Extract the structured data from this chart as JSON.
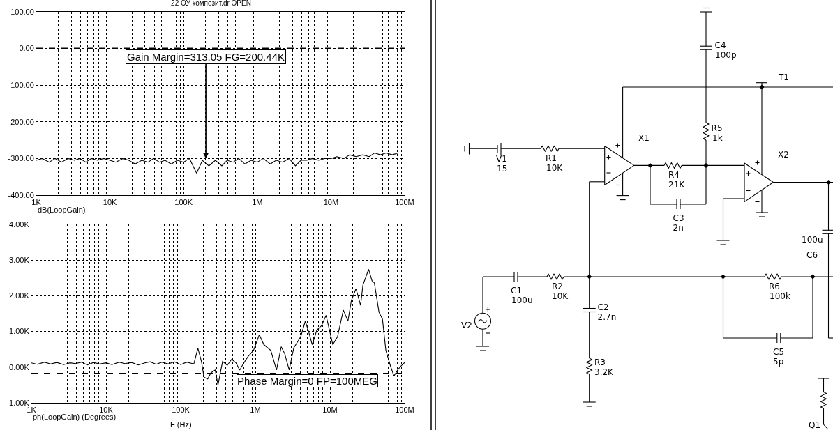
{
  "chart_data": [
    {
      "type": "line",
      "title": "22 ОУ композит.dr OPEN",
      "color": "#000000",
      "log": "x",
      "grid": true,
      "x": [
        1000,
        1200,
        1500,
        1800,
        2200,
        2700,
        3300,
        3900,
        4700,
        5600,
        6800,
        8200,
        10000,
        12000,
        15000,
        18000,
        22000,
        27000,
        33000,
        39000,
        47000,
        56000,
        68000,
        82000,
        100000,
        120000,
        150000,
        180000,
        220000,
        270000,
        330000,
        390000,
        470000,
        560000,
        680000,
        820000,
        1000000,
        1200000,
        1500000,
        1800000,
        2200000,
        2700000,
        3300000,
        3900000,
        4700000,
        5600000,
        6800000,
        8200000,
        10000000,
        12000000,
        15000000,
        18000000,
        22000000,
        27000000,
        33000000,
        39000000,
        47000000,
        56000000,
        68000000,
        82000000,
        100000000
      ],
      "values": [
        -305,
        -300,
        -310,
        -300,
        -310,
        -300,
        -305,
        -300,
        -310,
        -300,
        -305,
        -300,
        -305,
        -310,
        -300,
        -305,
        -315,
        -305,
        -310,
        -300,
        -310,
        -305,
        -315,
        -305,
        -310,
        -300,
        -340,
        -305,
        -320,
        -305,
        -320,
        -305,
        -310,
        -300,
        -315,
        -305,
        -310,
        -300,
        -315,
        -305,
        -310,
        -300,
        -320,
        -305,
        -305,
        -300,
        -305,
        -300,
        -300,
        -295,
        -300,
        -290,
        -295,
        -290,
        -295,
        -285,
        -290,
        -285,
        -290,
        -285,
        -285
      ],
      "xlim": [
        1000,
        100000000
      ],
      "ylim": [
        -400,
        100
      ],
      "xticks": [
        {
          "value": 1000,
          "label": "1K"
        },
        {
          "value": 2000,
          "label": null
        },
        {
          "value": 3000,
          "label": null
        },
        {
          "value": 4000,
          "label": null
        },
        {
          "value": 5000,
          "label": null
        },
        {
          "value": 6000,
          "label": null
        },
        {
          "value": 7000,
          "label": null
        },
        {
          "value": 8000,
          "label": null
        },
        {
          "value": 9000,
          "label": null
        },
        {
          "value": 10000,
          "label": "10K"
        },
        {
          "value": 20000,
          "label": null
        },
        {
          "value": 30000,
          "label": null
        },
        {
          "value": 40000,
          "label": null
        },
        {
          "value": 50000,
          "label": null
        },
        {
          "value": 60000,
          "label": null
        },
        {
          "value": 70000,
          "label": null
        },
        {
          "value": 80000,
          "label": null
        },
        {
          "value": 90000,
          "label": null
        },
        {
          "value": 100000,
          "label": "100K"
        },
        {
          "value": 200000,
          "label": null
        },
        {
          "value": 300000,
          "label": null
        },
        {
          "value": 400000,
          "label": null
        },
        {
          "value": 500000,
          "label": null
        },
        {
          "value": 600000,
          "label": null
        },
        {
          "value": 700000,
          "label": null
        },
        {
          "value": 800000,
          "label": null
        },
        {
          "value": 900000,
          "label": null
        },
        {
          "value": 1000000,
          "label": "1M"
        },
        {
          "value": 2000000,
          "label": null
        },
        {
          "value": 3000000,
          "label": null
        },
        {
          "value": 4000000,
          "label": null
        },
        {
          "value": 5000000,
          "label": null
        },
        {
          "value": 6000000,
          "label": null
        },
        {
          "value": 7000000,
          "label": null
        },
        {
          "value": 8000000,
          "label": null
        },
        {
          "value": 9000000,
          "label": null
        },
        {
          "value": 10000000,
          "label": "10M"
        },
        {
          "value": 20000000,
          "label": null
        },
        {
          "value": 30000000,
          "label": null
        },
        {
          "value": 40000000,
          "label": null
        },
        {
          "value": 50000000,
          "label": null
        },
        {
          "value": 60000000,
          "label": null
        },
        {
          "value": 70000000,
          "label": null
        },
        {
          "value": 80000000,
          "label": null
        },
        {
          "value": 90000000,
          "label": null
        },
        {
          "value": 100000000,
          "label": "100M"
        }
      ],
      "yticks": [
        {
          "value": 100,
          "label": "100.00"
        },
        {
          "value": 0,
          "label": "0.00"
        },
        {
          "value": -100,
          "label": "-100.00"
        },
        {
          "value": -200,
          "label": "-200.00"
        },
        {
          "value": -300,
          "label": "-300.00"
        },
        {
          "value": -400,
          "label": "-400.00"
        }
      ],
      "ref_lines": [
        {
          "axis": "y",
          "value": 0,
          "line_style": "dashed"
        }
      ],
      "annotations": [
        {
          "text": "Gain Margin=313.05 FG=200.44K",
          "x": 200440,
          "y": -300
        },
        "dB(LoopGain)"
      ]
    },
    {
      "type": "line",
      "xlabel": "F (Hz)",
      "color": "#000000",
      "log": "x",
      "grid": true,
      "x": [
        1000,
        1200,
        1500,
        1800,
        2200,
        2700,
        3300,
        3900,
        4700,
        5600,
        6800,
        8200,
        10000,
        12000,
        15000,
        18000,
        22000,
        27000,
        33000,
        39000,
        47000,
        56000,
        68000,
        82000,
        100000,
        120000,
        150000,
        170000,
        190000,
        205000,
        230000,
        254000,
        290000,
        316000,
        364000,
        420000,
        482000,
        550000,
        618000,
        687000,
        800000,
        946000,
        1130000,
        1300000,
        1610000,
        1920000,
        2220000,
        2470000,
        2840000,
        3270000,
        4050000,
        4670000,
        5200000,
        5780000,
        6660000,
        7690000,
        8860000,
        9840000,
        10900000,
        12600000,
        15100000,
        17400000,
        19300000,
        22300000,
        25700000,
        27600000,
        32900000,
        36600000,
        39300000,
        45300000,
        50400000,
        56000000,
        64600000,
        71900000,
        80000000,
        88900000,
        100000000
      ],
      "values": [
        120,
        80,
        140,
        90,
        130,
        70,
        120,
        100,
        140,
        60,
        130,
        90,
        120,
        70,
        140,
        100,
        130,
        60,
        120,
        150,
        80,
        140,
        90,
        150,
        70,
        140,
        90,
        530,
        150,
        -280,
        -330,
        -160,
        -80,
        -500,
        160,
        50,
        220,
        120,
        -80,
        90,
        300,
        470,
        910,
        630,
        470,
        -80,
        570,
        380,
        -80,
        540,
        850,
        1290,
        980,
        630,
        1040,
        1160,
        1450,
        1040,
        630,
        850,
        1600,
        1290,
        1860,
        2200,
        1730,
        2300,
        2740,
        2420,
        2360,
        1540,
        1350,
        470,
        30,
        -250,
        -90,
        30,
        130
      ],
      "xlim": [
        1000,
        100000000
      ],
      "ylim": [
        -1000,
        4000
      ],
      "xticks": [
        {
          "value": 1000,
          "label": "1K"
        },
        {
          "value": 2000,
          "label": null
        },
        {
          "value": 3000,
          "label": null
        },
        {
          "value": 4000,
          "label": null
        },
        {
          "value": 5000,
          "label": null
        },
        {
          "value": 6000,
          "label": null
        },
        {
          "value": 7000,
          "label": null
        },
        {
          "value": 8000,
          "label": null
        },
        {
          "value": 9000,
          "label": null
        },
        {
          "value": 10000,
          "label": "10K"
        },
        {
          "value": 20000,
          "label": null
        },
        {
          "value": 30000,
          "label": null
        },
        {
          "value": 40000,
          "label": null
        },
        {
          "value": 50000,
          "label": null
        },
        {
          "value": 60000,
          "label": null
        },
        {
          "value": 70000,
          "label": null
        },
        {
          "value": 80000,
          "label": null
        },
        {
          "value": 90000,
          "label": null
        },
        {
          "value": 100000,
          "label": "100K"
        },
        {
          "value": 200000,
          "label": null
        },
        {
          "value": 300000,
          "label": null
        },
        {
          "value": 400000,
          "label": null
        },
        {
          "value": 500000,
          "label": null
        },
        {
          "value": 600000,
          "label": null
        },
        {
          "value": 700000,
          "label": null
        },
        {
          "value": 800000,
          "label": null
        },
        {
          "value": 900000,
          "label": null
        },
        {
          "value": 1000000,
          "label": "1M"
        },
        {
          "value": 2000000,
          "label": null
        },
        {
          "value": 3000000,
          "label": null
        },
        {
          "value": 4000000,
          "label": null
        },
        {
          "value": 5000000,
          "label": null
        },
        {
          "value": 6000000,
          "label": null
        },
        {
          "value": 7000000,
          "label": null
        },
        {
          "value": 8000000,
          "label": null
        },
        {
          "value": 9000000,
          "label": null
        },
        {
          "value": 10000000,
          "label": "10M"
        },
        {
          "value": 20000000,
          "label": null
        },
        {
          "value": 30000000,
          "label": null
        },
        {
          "value": 40000000,
          "label": null
        },
        {
          "value": 50000000,
          "label": null
        },
        {
          "value": 60000000,
          "label": null
        },
        {
          "value": 70000000,
          "label": null
        },
        {
          "value": 80000000,
          "label": null
        },
        {
          "value": 90000000,
          "label": null
        },
        {
          "value": 100000000,
          "label": "100M"
        }
      ],
      "yticks": [
        {
          "value": 4000,
          "label": "4.00K"
        },
        {
          "value": 3000,
          "label": "3.00K"
        },
        {
          "value": 2000,
          "label": "2.00K"
        },
        {
          "value": 1000,
          "label": "1.00K"
        },
        {
          "value": 0,
          "label": "0.00K"
        },
        {
          "value": -1000,
          "label": "-1.00K"
        }
      ],
      "ref_lines": [
        {
          "axis": "y",
          "value": -180,
          "line_style": "dashed"
        }
      ],
      "annotations": [
        "Phase Margin=0 FP=100MEG",
        "ph(LoopGain) (Degrees)"
      ]
    },
    {
      "type": "other",
      "annotations": [
        "C4",
        "100p",
        "T1",
        "R5",
        "1k",
        "X1",
        "X2",
        "V1",
        "15",
        "R1",
        "10K",
        "R4",
        "21K",
        "C3",
        "2n",
        "100u",
        "C6",
        "C1",
        "100u",
        "R2",
        "10K",
        "R6",
        "100k",
        "C2",
        "2.7n",
        "V2",
        "R3",
        "3.2K",
        "C5",
        "5p",
        "Q1"
      ]
    }
  ]
}
